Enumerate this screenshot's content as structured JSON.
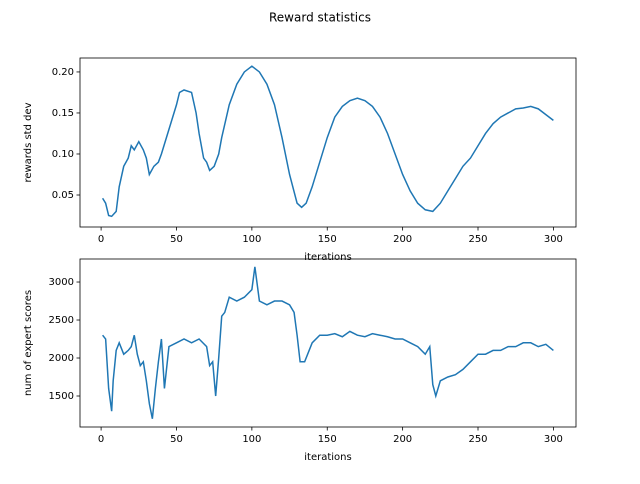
{
  "title": "Reward statistics",
  "chart_data": [
    {
      "type": "line",
      "xlabel": "iterations",
      "ylabel": "rewards std dev",
      "xlim": [
        -14,
        315
      ],
      "xticks": [
        0,
        50,
        100,
        150,
        200,
        250,
        300
      ],
      "ylim": [
        0.011,
        0.217
      ],
      "yticks": [
        0.05,
        {
          "value": 0.1,
          "label": "0.10"
        },
        0.15,
        {
          "value": 0.2,
          "label": "0.20"
        }
      ],
      "x": [
        1,
        3,
        5,
        7,
        10,
        12,
        15,
        18,
        20,
        22,
        25,
        28,
        30,
        32,
        35,
        38,
        40,
        45,
        50,
        52,
        55,
        60,
        63,
        65,
        68,
        70,
        72,
        75,
        78,
        80,
        85,
        90,
        95,
        100,
        105,
        110,
        115,
        120,
        125,
        130,
        133,
        136,
        140,
        145,
        150,
        155,
        160,
        165,
        170,
        175,
        180,
        185,
        190,
        195,
        200,
        205,
        210,
        215,
        220,
        225,
        230,
        235,
        240,
        245,
        250,
        255,
        260,
        265,
        270,
        275,
        280,
        285,
        290,
        295,
        300
      ],
      "series": [
        {
          "color": "#1f77b4",
          "values": [
            0.046,
            0.04,
            0.025,
            0.024,
            0.03,
            0.06,
            0.085,
            0.095,
            0.11,
            0.105,
            0.115,
            0.105,
            0.095,
            0.075,
            0.085,
            0.09,
            0.1,
            0.13,
            0.16,
            0.175,
            0.178,
            0.175,
            0.15,
            0.125,
            0.095,
            0.09,
            0.08,
            0.085,
            0.1,
            0.12,
            0.16,
            0.185,
            0.2,
            0.207,
            0.2,
            0.185,
            0.16,
            0.12,
            0.075,
            0.04,
            0.035,
            0.04,
            0.06,
            0.09,
            0.12,
            0.145,
            0.158,
            0.165,
            0.168,
            0.165,
            0.158,
            0.145,
            0.125,
            0.1,
            0.075,
            0.055,
            0.04,
            0.032,
            0.03,
            0.04,
            0.055,
            0.07,
            0.085,
            0.095,
            0.11,
            0.125,
            0.137,
            0.145,
            0.15,
            0.155,
            0.156,
            0.158,
            0.155,
            0.148,
            0.141
          ]
        }
      ]
    },
    {
      "type": "line",
      "xlabel": "iterations",
      "ylabel": "num of expert scores",
      "xlim": [
        -14,
        315
      ],
      "xticks": [
        0,
        50,
        100,
        150,
        200,
        250,
        300
      ],
      "ylim": [
        1092,
        3303
      ],
      "yticks": [
        1500,
        2000,
        2500,
        3000
      ],
      "x": [
        1,
        3,
        5,
        7,
        8,
        10,
        12,
        15,
        18,
        20,
        22,
        24,
        26,
        28,
        30,
        32,
        34,
        36,
        38,
        40,
        42,
        45,
        50,
        55,
        60,
        65,
        70,
        72,
        74,
        76,
        78,
        80,
        82,
        85,
        90,
        95,
        100,
        102,
        105,
        110,
        115,
        120,
        125,
        128,
        130,
        132,
        135,
        140,
        145,
        150,
        155,
        160,
        165,
        170,
        175,
        180,
        185,
        190,
        195,
        200,
        205,
        210,
        215,
        218,
        220,
        222,
        225,
        230,
        235,
        240,
        245,
        250,
        255,
        260,
        265,
        270,
        275,
        280,
        285,
        290,
        295,
        300
      ],
      "series": [
        {
          "color": "#1f77b4",
          "values": [
            2300,
            2250,
            1600,
            1300,
            1700,
            2100,
            2200,
            2050,
            2100,
            2150,
            2300,
            2050,
            1900,
            1950,
            1700,
            1400,
            1200,
            1600,
            1950,
            2250,
            1600,
            2150,
            2200,
            2250,
            2200,
            2250,
            2150,
            1900,
            1950,
            1500,
            2000,
            2550,
            2600,
            2800,
            2750,
            2800,
            2900,
            3200,
            2750,
            2700,
            2750,
            2750,
            2700,
            2600,
            2300,
            1950,
            1950,
            2200,
            2300,
            2300,
            2320,
            2280,
            2350,
            2300,
            2280,
            2320,
            2300,
            2280,
            2250,
            2250,
            2200,
            2150,
            2050,
            2150,
            1650,
            1500,
            1700,
            1750,
            1780,
            1850,
            1950,
            2050,
            2050,
            2100,
            2100,
            2150,
            2150,
            2200,
            2200,
            2150,
            2180,
            2100
          ]
        }
      ]
    }
  ]
}
